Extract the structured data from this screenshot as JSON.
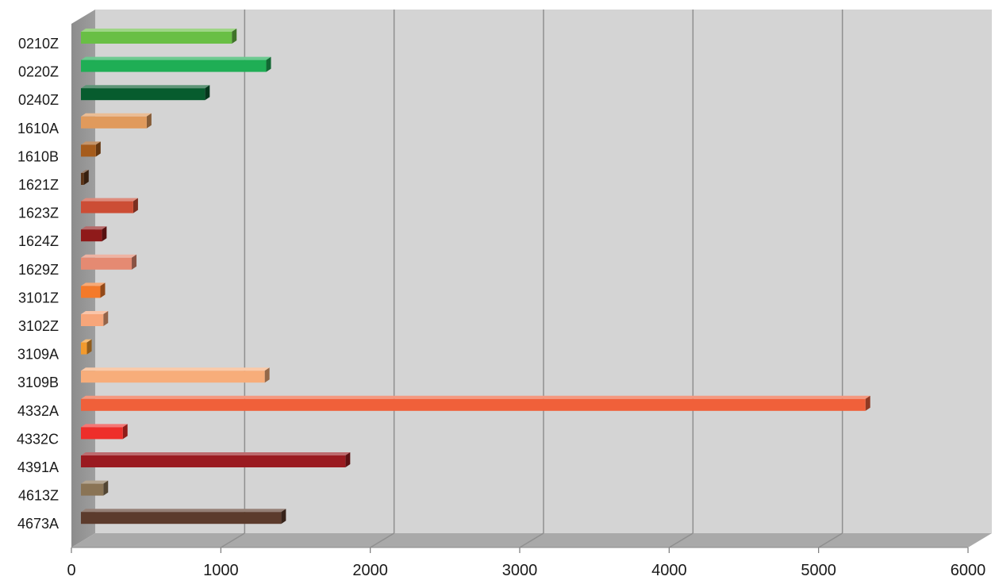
{
  "chart_data": {
    "type": "bar",
    "orientation": "horizontal",
    "style": "3d",
    "grid": true,
    "legend": "none",
    "title": "",
    "xlabel": "",
    "ylabel": "",
    "xlim": [
      0,
      6000
    ],
    "x_ticks": [
      "0",
      "1000",
      "2000",
      "3000",
      "4000",
      "5000",
      "6000"
    ],
    "categories": [
      "0210Z",
      "0220Z",
      "0240Z",
      "1610A",
      "1610B",
      "1621Z",
      "1623Z",
      "1624Z",
      "1629Z",
      "3101Z",
      "3102Z",
      "3109A",
      "3109B",
      "4332A",
      "4332C",
      "4391A",
      "4613Z",
      "4673A"
    ],
    "values": [
      1010,
      1240,
      830,
      440,
      100,
      20,
      350,
      140,
      340,
      130,
      150,
      40,
      1230,
      5250,
      280,
      1770,
      150,
      1340
    ],
    "colors": [
      "#69bf45",
      "#1fae55",
      "#075c2e",
      "#e09a5c",
      "#a65c1c",
      "#5c3417",
      "#cc4d35",
      "#8f1a1a",
      "#e58a72",
      "#f47a2a",
      "#f7a67a",
      "#f29a2e",
      "#f7ad7a",
      "#f0603a",
      "#ee2e2a",
      "#9a1a20",
      "#8a7455",
      "#5c3b2c"
    ]
  }
}
